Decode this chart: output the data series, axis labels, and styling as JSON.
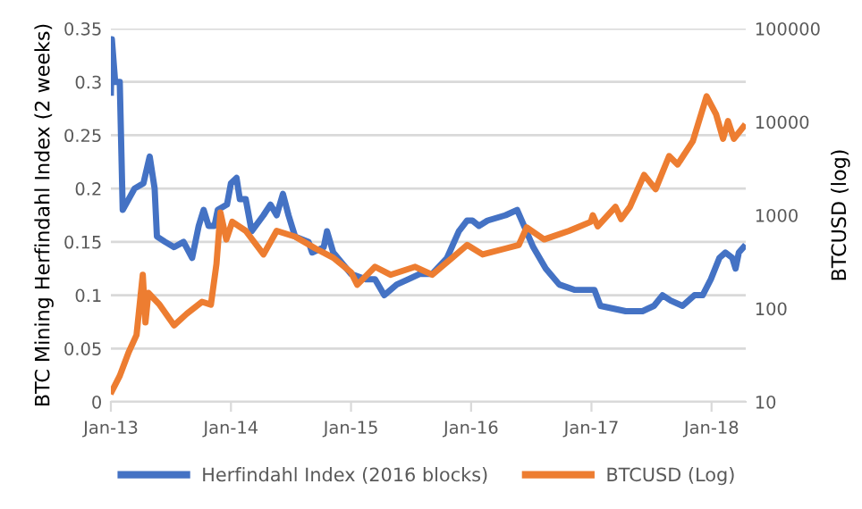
{
  "chart_data": {
    "type": "line",
    "ylabel": "BTC Mining Herfindahl Index (2 weeks)",
    "y2label": "BTCUSD (log)",
    "xlim": [
      "2013-01-01",
      "2018-04-15"
    ],
    "xticks": [
      {
        "value": "2013-01-01",
        "label": "Jan-13"
      },
      {
        "value": "2014-01-01",
        "label": "Jan-14"
      },
      {
        "value": "2015-01-01",
        "label": "Jan-15"
      },
      {
        "value": "2016-01-01",
        "label": "Jan-16"
      },
      {
        "value": "2017-01-01",
        "label": "Jan-17"
      },
      {
        "value": "2018-01-01",
        "label": "Jan-18"
      }
    ],
    "ylim": [
      0,
      0.35
    ],
    "yticks": [
      0,
      0.05,
      0.1,
      0.15,
      0.2,
      0.25,
      0.3,
      0.35
    ],
    "y2lim": [
      10,
      100000
    ],
    "y2ticks": [
      10,
      100,
      1000,
      10000,
      100000
    ],
    "log": "y2",
    "grid": "y",
    "legend": "bottom",
    "marker": "none",
    "line_style": "solid",
    "series": [
      {
        "name": "Herfindahl Index (2016 blocks)",
        "color": "#4472c4",
        "x": [
          "2013-01-01",
          "2013-01-04",
          "2013-01-14",
          "2013-01-28",
          "2013-02-06",
          "2013-02-24",
          "2013-03-14",
          "2013-04-10",
          "2013-04-29",
          "2013-05-14",
          "2013-05-21",
          "2013-06-15",
          "2013-07-12",
          "2013-08-10",
          "2013-09-05",
          "2013-09-25",
          "2013-10-10",
          "2013-10-25",
          "2013-11-12",
          "2013-11-22",
          "2013-12-20",
          "2014-01-01",
          "2014-01-18",
          "2014-01-28",
          "2014-02-15",
          "2014-03-05",
          "2014-04-10",
          "2014-05-01",
          "2014-05-20",
          "2014-06-08",
          "2014-06-25",
          "2014-07-15",
          "2014-08-25",
          "2014-09-05",
          "2014-10-10",
          "2014-10-20",
          "2014-11-08",
          "2014-12-05",
          "2015-01-01",
          "2015-02-15",
          "2015-03-15",
          "2015-04-12",
          "2015-05-20",
          "2015-06-25",
          "2015-07-30",
          "2015-09-05",
          "2015-10-20",
          "2015-11-25",
          "2015-12-20",
          "2016-01-05",
          "2016-01-25",
          "2016-02-20",
          "2016-04-15",
          "2016-05-20",
          "2016-06-10",
          "2016-07-08",
          "2016-08-15",
          "2016-09-25",
          "2016-11-10",
          "2017-01-10",
          "2017-01-28",
          "2017-04-15",
          "2017-06-05",
          "2017-07-10",
          "2017-08-05",
          "2017-08-30",
          "2017-10-05",
          "2017-11-10",
          "2017-12-05",
          "2017-12-30",
          "2018-01-25",
          "2018-02-12",
          "2018-03-05",
          "2018-03-15",
          "2018-03-25",
          "2018-04-08"
        ],
        "values": [
          0.29,
          0.34,
          0.3,
          0.3,
          0.18,
          0.19,
          0.2,
          0.205,
          0.23,
          0.2,
          0.155,
          0.15,
          0.145,
          0.15,
          0.135,
          0.165,
          0.18,
          0.165,
          0.165,
          0.18,
          0.185,
          0.205,
          0.21,
          0.19,
          0.19,
          0.16,
          0.175,
          0.185,
          0.175,
          0.195,
          0.175,
          0.155,
          0.15,
          0.14,
          0.145,
          0.16,
          0.14,
          0.13,
          0.12,
          0.115,
          0.115,
          0.1,
          0.11,
          0.115,
          0.12,
          0.12,
          0.135,
          0.16,
          0.17,
          0.17,
          0.165,
          0.17,
          0.175,
          0.18,
          0.165,
          0.145,
          0.125,
          0.11,
          0.105,
          0.105,
          0.09,
          0.085,
          0.085,
          0.09,
          0.1,
          0.095,
          0.09,
          0.1,
          0.1,
          0.115,
          0.135,
          0.14,
          0.135,
          0.125,
          0.14,
          0.145
        ]
      },
      {
        "name": "BTCUSD (Log)",
        "color": "#ed7d31",
        "axis": "y2",
        "x": [
          "2013-01-04",
          "2013-01-28",
          "2013-02-24",
          "2013-03-20",
          "2013-04-08",
          "2013-04-16",
          "2013-04-25",
          "2013-05-29",
          "2013-07-12",
          "2013-08-20",
          "2013-10-05",
          "2013-11-01",
          "2013-11-18",
          "2013-11-30",
          "2013-12-18",
          "2014-01-05",
          "2014-02-15",
          "2014-04-10",
          "2014-05-20",
          "2014-07-15",
          "2014-09-15",
          "2014-11-08",
          "2015-01-01",
          "2015-01-20",
          "2015-03-15",
          "2015-05-01",
          "2015-07-15",
          "2015-09-05",
          "2015-11-05",
          "2015-12-20",
          "2016-02-05",
          "2016-04-15",
          "2016-05-25",
          "2016-06-18",
          "2016-08-10",
          "2016-10-25",
          "2016-12-30",
          "2017-01-05",
          "2017-01-20",
          "2017-03-15",
          "2017-04-01",
          "2017-04-28",
          "2017-06-10",
          "2017-07-15",
          "2017-08-25",
          "2017-09-20",
          "2017-11-05",
          "2017-12-17",
          "2018-01-15",
          "2018-02-05",
          "2018-02-20",
          "2018-03-10",
          "2018-04-08"
        ],
        "values": [
          13,
          19,
          34,
          52,
          230,
          71,
          147,
          110,
          66,
          88,
          118,
          110,
          300,
          1070,
          550,
          850,
          680,
          380,
          680,
          590,
          440,
          350,
          245,
          180,
          280,
          230,
          280,
          230,
          350,
          480,
          380,
          440,
          480,
          740,
          550,
          680,
          850,
          1000,
          760,
          1230,
          910,
          1230,
          2700,
          1900,
          4300,
          3500,
          6200,
          18800,
          12000,
          6600,
          10200,
          6600,
          8900
        ]
      }
    ]
  }
}
